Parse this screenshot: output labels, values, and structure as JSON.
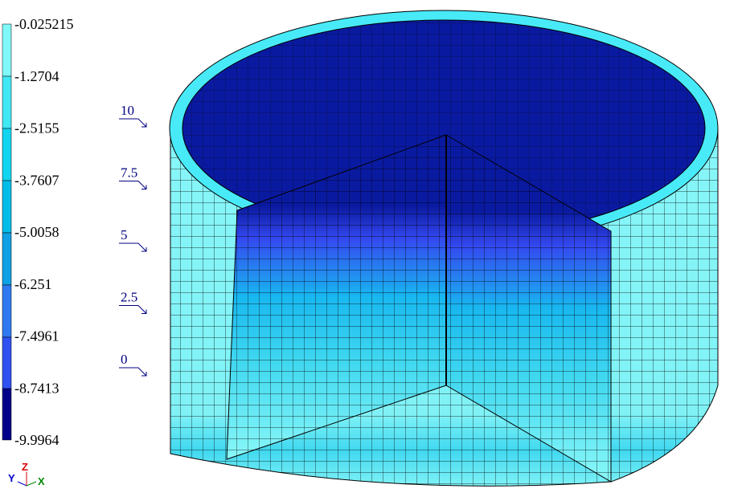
{
  "legend": {
    "labels": [
      "-0.025215",
      "-1.2704",
      "-2.5155",
      "-3.7607",
      "-5.0058",
      "-6.251",
      "-7.4961",
      "-8.7413",
      "-9.9964"
    ]
  },
  "levels": [
    "10",
    "7.5",
    "5",
    "2.5",
    "0"
  ],
  "axes": {
    "y": "Y",
    "z": "Z",
    "x": "X"
  }
}
